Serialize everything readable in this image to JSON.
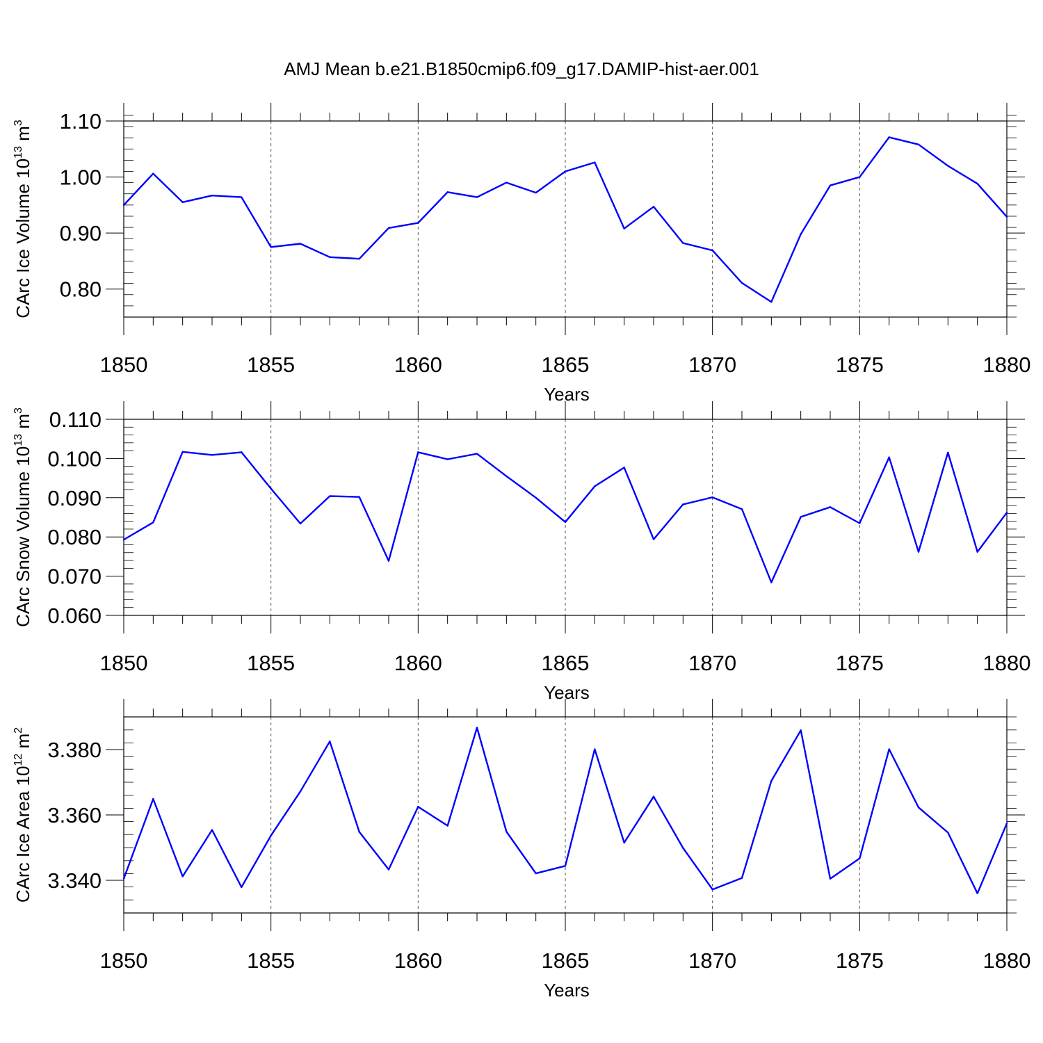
{
  "title": "AMJ Mean b.e21.B1850cmip6.f09_g17.DAMIP-hist-aer.001",
  "colors": {
    "line": "#0000ff",
    "axis": "#000000",
    "grid": "#555555"
  },
  "chart_data": [
    {
      "type": "line",
      "title": "AMJ Mean b.e21.B1850cmip6.f09_g17.DAMIP-hist-aer.001",
      "xlabel": "Years",
      "ylabel": "CArc Ice Volume",
      "ylabel_exp": "13",
      "ylabel_unit": "3",
      "xlim": [
        1850,
        1880
      ],
      "ylim": [
        0.75,
        1.1
      ],
      "x_ticks": [
        1850,
        1855,
        1860,
        1865,
        1870,
        1875,
        1880
      ],
      "x_tick_labels": [
        "1850",
        "1855",
        "1860",
        "1865",
        "1870",
        "1875",
        "1880"
      ],
      "y_ticks": [
        0.8,
        0.9,
        1.0,
        1.1
      ],
      "y_tick_labels": [
        "0.80",
        "0.90",
        "1.00",
        "1.10"
      ],
      "x": [
        1850,
        1851,
        1852,
        1853,
        1854,
        1855,
        1856,
        1857,
        1858,
        1859,
        1860,
        1861,
        1862,
        1863,
        1864,
        1865,
        1866,
        1867,
        1868,
        1869,
        1870,
        1871,
        1872,
        1873,
        1874,
        1875,
        1876,
        1877,
        1878,
        1879,
        1880
      ],
      "values": [
        0.95,
        1.006,
        0.955,
        0.967,
        0.964,
        0.875,
        0.881,
        0.857,
        0.854,
        0.909,
        0.918,
        0.973,
        0.964,
        0.99,
        0.972,
        1.01,
        1.026,
        0.908,
        0.947,
        0.882,
        0.869,
        0.811,
        0.777,
        0.898,
        0.985,
        1.0,
        1.071,
        1.058,
        1.02,
        0.988,
        0.929
      ]
    },
    {
      "type": "line",
      "xlabel": "Years",
      "ylabel": "CArc Snow Volume",
      "ylabel_exp": "13",
      "ylabel_unit": "3",
      "xlim": [
        1850,
        1880
      ],
      "ylim": [
        0.06,
        0.11
      ],
      "x_ticks": [
        1850,
        1855,
        1860,
        1865,
        1870,
        1875,
        1880
      ],
      "x_tick_labels": [
        "1850",
        "1855",
        "1860",
        "1865",
        "1870",
        "1875",
        "1880"
      ],
      "y_ticks": [
        0.06,
        0.07,
        0.08,
        0.09,
        0.1,
        0.11
      ],
      "y_tick_labels": [
        "0.060",
        "0.070",
        "0.080",
        "0.090",
        "0.100",
        "0.110"
      ],
      "x": [
        1850,
        1851,
        1852,
        1853,
        1854,
        1855,
        1856,
        1857,
        1858,
        1859,
        1860,
        1861,
        1862,
        1863,
        1864,
        1865,
        1866,
        1867,
        1868,
        1869,
        1870,
        1871,
        1872,
        1873,
        1874,
        1875,
        1876,
        1877,
        1878,
        1879,
        1880
      ],
      "values": [
        0.0793,
        0.0837,
        0.1017,
        0.1009,
        0.1016,
        0.0923,
        0.0834,
        0.0904,
        0.0902,
        0.0739,
        0.1016,
        0.0998,
        0.1012,
        0.0955,
        0.09,
        0.0838,
        0.0929,
        0.0977,
        0.0794,
        0.0883,
        0.0901,
        0.0871,
        0.0684,
        0.0851,
        0.0876,
        0.0835,
        0.1003,
        0.0762,
        0.1015,
        0.0762,
        0.0862
      ]
    },
    {
      "type": "line",
      "xlabel": "Years",
      "ylabel": "CArc Ice Area",
      "ylabel_exp": "12",
      "ylabel_unit": "2",
      "xlim": [
        1850,
        1880
      ],
      "ylim": [
        3.33,
        3.39
      ],
      "x_ticks": [
        1850,
        1855,
        1860,
        1865,
        1870,
        1875,
        1880
      ],
      "x_tick_labels": [
        "1850",
        "1855",
        "1860",
        "1865",
        "1870",
        "1875",
        "1880"
      ],
      "y_ticks": [
        3.34,
        3.36,
        3.38
      ],
      "y_tick_labels": [
        "3.340",
        "3.360",
        "3.380"
      ],
      "x": [
        1850,
        1851,
        1852,
        1853,
        1854,
        1855,
        1856,
        1857,
        1858,
        1859,
        1860,
        1861,
        1862,
        1863,
        1864,
        1865,
        1866,
        1867,
        1868,
        1869,
        1870,
        1871,
        1872,
        1873,
        1874,
        1875,
        1876,
        1877,
        1878,
        1879,
        1880
      ],
      "values": [
        3.3405,
        3.3649,
        3.3412,
        3.3554,
        3.3379,
        3.3537,
        3.3672,
        3.3825,
        3.3548,
        3.3433,
        3.3625,
        3.3567,
        3.3867,
        3.3549,
        3.3421,
        3.3444,
        3.3801,
        3.3515,
        3.3656,
        3.3499,
        3.3372,
        3.3407,
        3.3704,
        3.3859,
        3.3405,
        3.3467,
        3.3801,
        3.3623,
        3.3546,
        3.336,
        3.3574
      ]
    }
  ]
}
